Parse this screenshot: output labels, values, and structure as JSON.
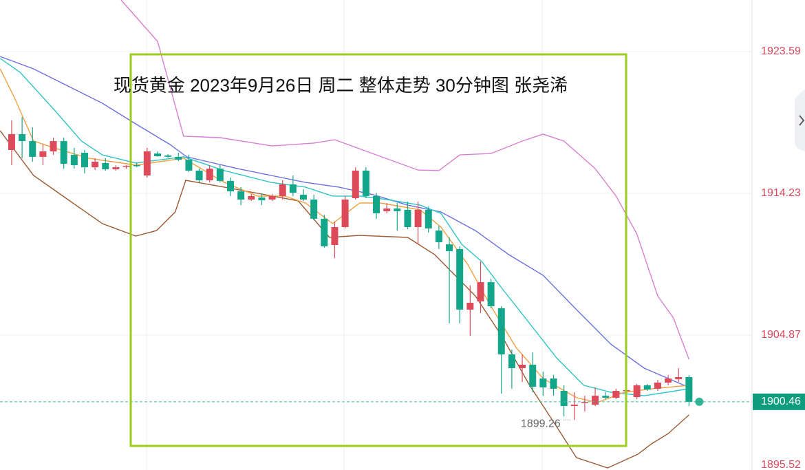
{
  "chart_data": {
    "type": "candlestick",
    "title": "现货黄金 2023年9月26日 周二 整体走势 30分钟图  张尧浠",
    "up_color": "#dd4a5a",
    "down_color": "#13a68a",
    "open": [
      1917.09,
      1918.14,
      1917.68,
      1916.64,
      1917.0,
      1917.68,
      1916.77,
      1916.91,
      1915.95,
      1916.23,
      1915.82,
      1916.0,
      1916.09,
      1915.41,
      1916.86,
      1916.73,
      1916.64,
      1916.45,
      1915.73,
      1915.09,
      1915.86,
      1915.05,
      1914.36,
      1913.82,
      1913.95,
      1913.82,
      1914.05,
      1914.82,
      1914.14,
      1913.82,
      1912.55,
      1910.82,
      1912.0,
      1913.91,
      1915.73,
      1914.05,
      1913.05,
      1913.23,
      1913.14,
      1912.0,
      1913.14,
      1911.77,
      1910.86,
      1910.55,
      1906.55,
      1907.09,
      1908.36,
      1906.64,
      1903.59,
      1902.68,
      1902.91,
      1902.0,
      1902.0,
      1901.18,
      1900.18,
      1900.41,
      1900.27,
      1900.86,
      1900.73,
      1901.18,
      1900.77,
      1901.55,
      1901.32,
      1901.73,
      1901.95,
      1902.09
    ],
    "high": [
      1919.05,
      1919.27,
      1918.59,
      1917.45,
      1917.91,
      1917.91,
      1917.23,
      1917.09,
      1916.55,
      1916.55,
      1916.09,
      1916.09,
      1916.23,
      1917.23,
      1917.0,
      1916.82,
      1916.91,
      1916.77,
      1915.86,
      1916.09,
      1916.09,
      1915.27,
      1914.64,
      1914.18,
      1914.18,
      1914.18,
      1915.09,
      1915.41,
      1914.5,
      1914.14,
      1912.82,
      1912.36,
      1914.05,
      1915.95,
      1915.95,
      1914.27,
      1913.59,
      1913.59,
      1913.68,
      1913.68,
      1913.36,
      1912.09,
      1911.32,
      1910.73,
      1908.14,
      1909.73,
      1908.59,
      1906.77,
      1903.91,
      1903.59,
      1903.73,
      1902.45,
      1902.23,
      1901.55,
      1901.09,
      1900.86,
      1901.41,
      1901.09,
      1901.32,
      1901.32,
      1901.64,
      1901.64,
      1901.91,
      1902.23,
      1902.68,
      1902.23
    ],
    "low": [
      1916.09,
      1916.55,
      1916.32,
      1916.09,
      1916.77,
      1915.86,
      1915.86,
      1915.55,
      1915.77,
      1915.73,
      1915.73,
      1915.86,
      1915.95,
      1915.27,
      1916.64,
      1916.59,
      1916.36,
      1915.64,
      1914.95,
      1914.95,
      1914.95,
      1914.05,
      1913.45,
      1913.73,
      1913.45,
      1913.73,
      1913.82,
      1914.05,
      1913.73,
      1912.45,
      1910.64,
      1909.95,
      1911.91,
      1913.82,
      1913.91,
      1912.55,
      1912.91,
      1911.77,
      1911.86,
      1910.86,
      1911.64,
      1910.55,
      1905.64,
      1905.64,
      1904.82,
      1906.32,
      1906.64,
      1901.0,
      1901.32,
      1901.77,
      1901.09,
      1900.86,
      1900.86,
      1899.5,
      1899.26,
      1899.82,
      1900.18,
      1900.64,
      1900.64,
      1901.09,
      1900.64,
      1901.18,
      1901.18,
      1901.55,
      1901.77,
      1900.18
    ],
    "close": [
      1918.14,
      1917.68,
      1916.64,
      1917.0,
      1917.68,
      1916.18,
      1916.09,
      1915.95,
      1916.32,
      1915.82,
      1915.95,
      1916.05,
      1916.05,
      1917.0,
      1916.68,
      1916.64,
      1916.45,
      1915.73,
      1915.09,
      1915.86,
      1915.05,
      1914.36,
      1913.82,
      1914.05,
      1913.77,
      1914.05,
      1914.82,
      1914.27,
      1913.82,
      1912.55,
      1910.73,
      1912.0,
      1913.82,
      1915.73,
      1914.05,
      1912.91,
      1913.23,
      1913.05,
      1912.0,
      1913.14,
      1911.91,
      1911.0,
      1910.41,
      1906.55,
      1907.0,
      1908.36,
      1906.77,
      1903.59,
      1902.68,
      1902.91,
      1901.45,
      1901.41,
      1901.32,
      1900.18,
      1900.27,
      1900.45,
      1900.86,
      1900.73,
      1901.18,
      1901.23,
      1901.55,
      1901.27,
      1901.73,
      1902.0,
      1902.09,
      1900.46
    ],
    "lines": [
      {
        "color": "#d77fd0",
        "x": [
          10.5,
          14,
          16.5,
          20,
          25,
          29,
          31,
          35,
          39,
          41,
          43,
          46,
          49,
          51,
          53,
          56,
          58,
          60,
          62,
          63.5,
          65
        ],
        "values": [
          1927.0,
          1924.27,
          1918.0,
          1917.91,
          1917.36,
          1917.55,
          1917.77,
          1916.77,
          1915.77,
          1915.73,
          1916.77,
          1916.86,
          1917.68,
          1918.14,
          1917.68,
          1915.86,
          1914.05,
          1911.55,
          1907.45,
          1906.0,
          1903.27
        ]
      },
      {
        "color": "#9b5a32",
        "x": [
          -1.1,
          2.1,
          5.4,
          8.7,
          11.9,
          13.9,
          15.7,
          16.7,
          20.4,
          27.5,
          28.8,
          30.5,
          33.4,
          38,
          40.6,
          44.5,
          47.1,
          49.7,
          52.3,
          54.2,
          57.2,
          60.1,
          61.4,
          63,
          65
        ],
        "values": [
          1918.36,
          1915.41,
          1913.82,
          1912.23,
          1911.41,
          1911.77,
          1913.0,
          1915.09,
          1914.64,
          1913.73,
          1912.68,
          1911.32,
          1911.45,
          1911.32,
          1910.18,
          1907.45,
          1904.73,
          1901.55,
          1898.82,
          1896.77,
          1896.09,
          1897.0,
          1897.68,
          1898.36,
          1899.59
        ]
      },
      {
        "color": "#6a6fe0",
        "x": [
          -1.1,
          2.1,
          5.4,
          8.7,
          11.9,
          15.2,
          16.8,
          21.7,
          24.9,
          28.2,
          31.4,
          34.7,
          38,
          41.2,
          44.5,
          47.7,
          51,
          54.2,
          57.5,
          60.7,
          65
        ],
        "values": [
          1923.27,
          1922.45,
          1921.32,
          1920.18,
          1918.82,
          1917.45,
          1916.64,
          1915.86,
          1915.41,
          1914.95,
          1914.64,
          1914.14,
          1913.45,
          1913.0,
          1911.77,
          1910.18,
          1908.82,
          1906.55,
          1904.27,
          1902.68,
          1901.41
        ]
      },
      {
        "color": "#2ec4c4",
        "x": [
          -1.1,
          0.8,
          4.1,
          6.7,
          8.7,
          11.9,
          16.5,
          20.4,
          24.9,
          28.2,
          30.8,
          33.4,
          36,
          39.2,
          41.2,
          43.2,
          45.1,
          47.1,
          49.7,
          52.3,
          54.9,
          57.5,
          60.7,
          65
        ],
        "values": [
          1923.14,
          1922.23,
          1919.73,
          1917.68,
          1916.77,
          1916.23,
          1916.64,
          1915.73,
          1914.95,
          1914.64,
          1914.05,
          1914.05,
          1913.82,
          1913.45,
          1912.91,
          1910.86,
          1909.73,
          1907.91,
          1905.64,
          1903.36,
          1901.55,
          1901.09,
          1900.86,
          1901.32
        ]
      },
      {
        "color": "#f0a040",
        "x": [
          -1.1,
          0.2,
          2.1,
          4.1,
          7.4,
          11.9,
          16.5,
          20.4,
          23.6,
          26.2,
          28.2,
          30.8,
          33.4,
          35.4,
          39.2,
          41.2,
          43.8,
          45.8,
          48.4,
          51,
          54.2,
          56.2,
          58.8,
          61.4,
          65
        ],
        "values": [
          1922.45,
          1920.64,
          1917.68,
          1917.23,
          1916.55,
          1916.09,
          1916.55,
          1914.95,
          1914.05,
          1914.05,
          1913.59,
          1912.23,
          1913.59,
          1913.59,
          1913.14,
          1912.0,
          1909.5,
          1907.0,
          1904.05,
          1902.0,
          1900.73,
          1900.41,
          1901.09,
          1901.32,
          1901.55
        ]
      }
    ],
    "xlim": [
      -1.12,
      71.05
    ],
    "ylim": [
      1895.52,
      1927.0
    ],
    "yticks": [
      1895.52,
      1904.87,
      1914.23,
      1923.59
    ],
    "last_price": 1900.46,
    "min_label": 1899.26
  }
}
